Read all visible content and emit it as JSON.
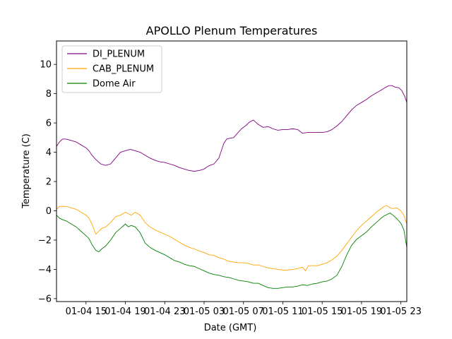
{
  "chart_data": {
    "type": "line",
    "title": "APOLLO Plenum Temperatures",
    "xlabel": "Date (GMT)",
    "ylabel": "Temperature (C)",
    "xlim": [
      12,
      47.6
    ],
    "ylim": [
      -6.2,
      11.6
    ],
    "x_unit": "hours since 01-04 00:00 GMT",
    "xticks": [
      {
        "value": 15,
        "label": "01-04 15"
      },
      {
        "value": 19,
        "label": "01-04 19"
      },
      {
        "value": 23,
        "label": "01-04 23"
      },
      {
        "value": 27,
        "label": "01-05 03"
      },
      {
        "value": 31,
        "label": "01-05 07"
      },
      {
        "value": 35,
        "label": "01-05 11"
      },
      {
        "value": 39,
        "label": "01-05 15"
      },
      {
        "value": 43,
        "label": "01-05 19"
      },
      {
        "value": 47,
        "label": "01-05 23"
      }
    ],
    "yticks": [
      {
        "value": -6,
        "label": "−6"
      },
      {
        "value": -4,
        "label": "−4"
      },
      {
        "value": -2,
        "label": "−2"
      },
      {
        "value": 0,
        "label": "0"
      },
      {
        "value": 2,
        "label": "2"
      },
      {
        "value": 4,
        "label": "4"
      },
      {
        "value": 6,
        "label": "6"
      },
      {
        "value": 8,
        "label": "8"
      },
      {
        "value": 10,
        "label": "10"
      }
    ],
    "grid": false,
    "legend_position": "top-left",
    "series": [
      {
        "name": "DI_PLENUM",
        "color": "#800080",
        "x": [
          12.0,
          12.3,
          12.6,
          13.0,
          13.5,
          14.0,
          14.5,
          15.0,
          15.3,
          15.6,
          16.0,
          16.5,
          17.0,
          17.5,
          18.0,
          18.5,
          19.0,
          19.5,
          20.0,
          20.5,
          21.0,
          21.5,
          22.0,
          22.5,
          23.0,
          23.5,
          24.0,
          24.5,
          25.0,
          25.5,
          26.0,
          26.5,
          27.0,
          27.3,
          27.6,
          28.0,
          28.5,
          29.0,
          29.3,
          29.6,
          30.0,
          30.4,
          30.8,
          31.2,
          31.6,
          32.0,
          32.5,
          33.0,
          33.5,
          34.0,
          34.5,
          35.0,
          35.5,
          36.0,
          36.5,
          37.0,
          37.5,
          38.0,
          38.5,
          39.0,
          39.5,
          40.0,
          40.5,
          41.0,
          41.5,
          42.0,
          42.5,
          43.0,
          43.5,
          44.0,
          44.5,
          45.0,
          45.5,
          45.8,
          46.1,
          46.4,
          46.8,
          47.1,
          47.4,
          47.6
        ],
        "y": [
          4.4,
          4.7,
          4.9,
          4.9,
          4.8,
          4.7,
          4.5,
          4.3,
          4.1,
          3.8,
          3.5,
          3.2,
          3.1,
          3.2,
          3.6,
          4.0,
          4.1,
          4.2,
          4.1,
          4.0,
          3.8,
          3.6,
          3.45,
          3.35,
          3.3,
          3.2,
          3.1,
          2.95,
          2.85,
          2.75,
          2.7,
          2.75,
          2.85,
          3.0,
          3.1,
          3.2,
          3.6,
          4.6,
          4.9,
          4.95,
          5.0,
          5.3,
          5.6,
          5.8,
          6.05,
          6.2,
          5.9,
          5.7,
          5.75,
          5.6,
          5.5,
          5.55,
          5.55,
          5.6,
          5.55,
          5.3,
          5.35,
          5.35,
          5.35,
          5.35,
          5.4,
          5.55,
          5.8,
          6.1,
          6.5,
          6.9,
          7.2,
          7.4,
          7.6,
          7.85,
          8.05,
          8.25,
          8.45,
          8.55,
          8.55,
          8.45,
          8.4,
          8.2,
          7.8,
          7.4
        ]
      },
      {
        "name": "CAB_PLENUM",
        "color": "#ffa500",
        "x": [
          12.0,
          12.3,
          12.6,
          13.0,
          13.5,
          14.0,
          14.5,
          15.0,
          15.3,
          15.6,
          16.0,
          16.3,
          16.6,
          17.0,
          17.5,
          18.0,
          18.5,
          19.0,
          19.3,
          19.6,
          20.0,
          20.5,
          21.0,
          21.5,
          22.0,
          22.5,
          23.0,
          23.5,
          24.0,
          24.5,
          25.0,
          25.5,
          26.0,
          26.5,
          27.0,
          27.5,
          28.0,
          28.5,
          29.0,
          29.5,
          30.0,
          30.5,
          31.0,
          31.5,
          32.0,
          32.5,
          33.0,
          33.5,
          34.0,
          34.5,
          35.0,
          35.5,
          36.0,
          36.5,
          37.0,
          37.3,
          37.6,
          38.0,
          38.5,
          39.0,
          39.5,
          40.0,
          40.5,
          41.0,
          41.5,
          42.0,
          42.5,
          43.0,
          43.5,
          44.0,
          44.5,
          45.0,
          45.3,
          45.6,
          45.9,
          46.2,
          46.6,
          47.0,
          47.3,
          47.6
        ],
        "y": [
          0.1,
          0.3,
          0.3,
          0.3,
          0.2,
          0.1,
          -0.1,
          -0.3,
          -0.5,
          -0.9,
          -1.6,
          -1.4,
          -1.2,
          -1.1,
          -0.8,
          -0.4,
          -0.3,
          -0.1,
          -0.2,
          -0.3,
          -0.1,
          -0.3,
          -0.8,
          -1.1,
          -1.3,
          -1.45,
          -1.6,
          -1.75,
          -1.95,
          -2.15,
          -2.35,
          -2.5,
          -2.6,
          -2.75,
          -2.85,
          -3.0,
          -3.05,
          -3.2,
          -3.3,
          -3.45,
          -3.5,
          -3.55,
          -3.55,
          -3.6,
          -3.7,
          -3.7,
          -3.8,
          -3.9,
          -3.95,
          -4.0,
          -4.05,
          -4.05,
          -4.0,
          -3.95,
          -3.85,
          -4.1,
          -3.75,
          -3.75,
          -3.75,
          -3.65,
          -3.55,
          -3.35,
          -3.1,
          -2.7,
          -2.25,
          -1.8,
          -1.35,
          -1.0,
          -0.7,
          -0.4,
          -0.1,
          0.15,
          0.3,
          0.35,
          0.2,
          0.15,
          0.2,
          0.0,
          -0.3,
          -0.9
        ]
      },
      {
        "name": "Dome Air",
        "color": "#008000",
        "x": [
          12.0,
          12.3,
          12.6,
          13.0,
          13.5,
          14.0,
          14.5,
          15.0,
          15.3,
          15.6,
          16.0,
          16.3,
          16.6,
          17.0,
          17.5,
          18.0,
          18.5,
          19.0,
          19.3,
          19.6,
          20.0,
          20.5,
          21.0,
          21.5,
          22.0,
          22.5,
          23.0,
          23.5,
          24.0,
          24.5,
          25.0,
          25.5,
          26.0,
          26.5,
          27.0,
          27.5,
          28.0,
          28.5,
          29.0,
          29.5,
          30.0,
          30.5,
          31.0,
          31.5,
          32.0,
          32.5,
          33.0,
          33.5,
          34.0,
          34.5,
          35.0,
          35.5,
          36.0,
          36.5,
          37.0,
          37.5,
          38.0,
          38.5,
          39.0,
          39.5,
          40.0,
          40.5,
          41.0,
          41.5,
          42.0,
          42.5,
          43.0,
          43.5,
          44.0,
          44.5,
          45.0,
          45.3,
          45.6,
          45.9,
          46.2,
          46.6,
          47.0,
          47.3,
          47.6
        ],
        "y": [
          -0.3,
          -0.5,
          -0.6,
          -0.7,
          -0.9,
          -1.1,
          -1.4,
          -1.7,
          -1.9,
          -2.3,
          -2.7,
          -2.8,
          -2.6,
          -2.4,
          -2.0,
          -1.5,
          -1.2,
          -0.9,
          -1.1,
          -1.0,
          -1.1,
          -1.5,
          -2.2,
          -2.5,
          -2.7,
          -2.85,
          -3.0,
          -3.2,
          -3.4,
          -3.5,
          -3.65,
          -3.75,
          -3.8,
          -3.95,
          -4.1,
          -4.25,
          -4.35,
          -4.4,
          -4.5,
          -4.55,
          -4.65,
          -4.75,
          -4.8,
          -4.85,
          -4.95,
          -4.95,
          -5.1,
          -5.25,
          -5.3,
          -5.3,
          -5.25,
          -5.2,
          -5.2,
          -5.15,
          -5.05,
          -5.1,
          -5.0,
          -4.95,
          -4.85,
          -4.8,
          -4.65,
          -4.4,
          -3.8,
          -3.0,
          -2.35,
          -1.95,
          -1.7,
          -1.45,
          -1.1,
          -0.8,
          -0.5,
          -0.35,
          -0.25,
          -0.15,
          -0.3,
          -0.55,
          -0.85,
          -1.3,
          -2.5
        ]
      }
    ]
  }
}
